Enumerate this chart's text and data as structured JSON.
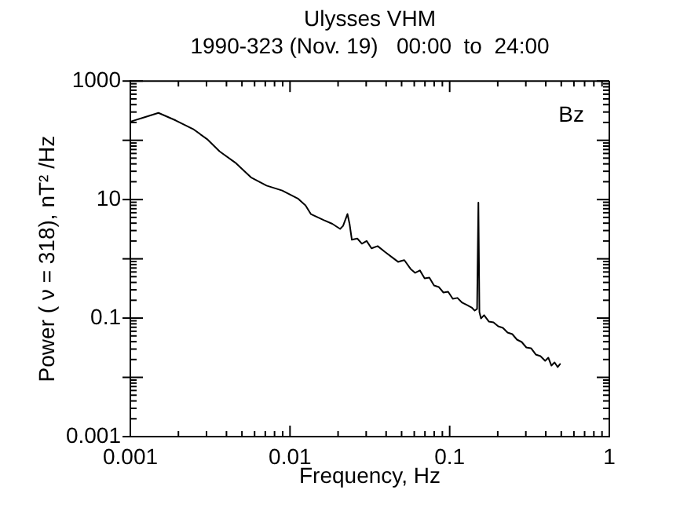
{
  "chart_data": {
    "type": "line",
    "title": "Ulysses VHM",
    "subtitle": "1990-323 (Nov. 19)   00:00  to  24:00",
    "xlabel": "Frequency, Hz",
    "ylabel": "Power ( ν = 318), nT² /Hz",
    "annotations": [
      "Bz"
    ],
    "log": "xy",
    "xlim": [
      0.001,
      1
    ],
    "ylim": [
      0.001,
      1000
    ],
    "xticks": [
      0.001,
      0.01,
      0.1,
      1
    ],
    "yticks": [
      0.001,
      {
        "value": 0.01,
        "label": null
      },
      0.1,
      {
        "value": 1,
        "label": null
      },
      10,
      {
        "value": 100,
        "label": null
      },
      1000
    ],
    "color": "#000000",
    "x": [
      0.00102,
      0.00123,
      0.0015,
      0.00192,
      0.00247,
      0.00302,
      0.00362,
      0.00454,
      0.00569,
      0.00713,
      0.00893,
      0.0112,
      0.0125,
      0.0135,
      0.0163,
      0.0184,
      0.0206,
      0.0215,
      0.0229,
      0.0236,
      0.0244,
      0.0264,
      0.0282,
      0.0302,
      0.0324,
      0.0354,
      0.0396,
      0.0434,
      0.0475,
      0.052,
      0.0569,
      0.0608,
      0.0651,
      0.0697,
      0.0746,
      0.0798,
      0.0854,
      0.0914,
      0.0978,
      0.1046,
      0.1119,
      0.1198,
      0.1282,
      0.1372,
      0.1435,
      0.1485,
      0.1513,
      0.1536,
      0.1571,
      0.1643,
      0.1758,
      0.1881,
      0.2013,
      0.2154,
      0.2305,
      0.2467,
      0.264,
      0.2825,
      0.3022,
      0.3234,
      0.3461,
      0.3703,
      0.3963,
      0.4147,
      0.4339,
      0.4539,
      0.4749,
      0.4913
    ],
    "values": [
      210,
      245,
      290,
      217,
      155,
      105,
      65,
      42,
      23.7,
      17.2,
      14.2,
      10.4,
      8.0,
      5.7,
      4.5,
      3.9,
      3.2,
      3.6,
      5.7,
      3.9,
      2.1,
      2.2,
      1.8,
      2.0,
      1.5,
      1.64,
      1.29,
      1.07,
      0.89,
      0.95,
      0.676,
      0.581,
      0.637,
      0.469,
      0.483,
      0.356,
      0.335,
      0.27,
      0.279,
      0.212,
      0.219,
      0.182,
      0.166,
      0.151,
      0.134,
      0.143,
      8.9,
      0.126,
      0.0988,
      0.112,
      0.0875,
      0.0848,
      0.0728,
      0.0685,
      0.057,
      0.0536,
      0.0433,
      0.0395,
      0.0319,
      0.031,
      0.0243,
      0.0228,
      0.019,
      0.0215,
      0.0158,
      0.0179,
      0.0149,
      0.0168
    ]
  }
}
